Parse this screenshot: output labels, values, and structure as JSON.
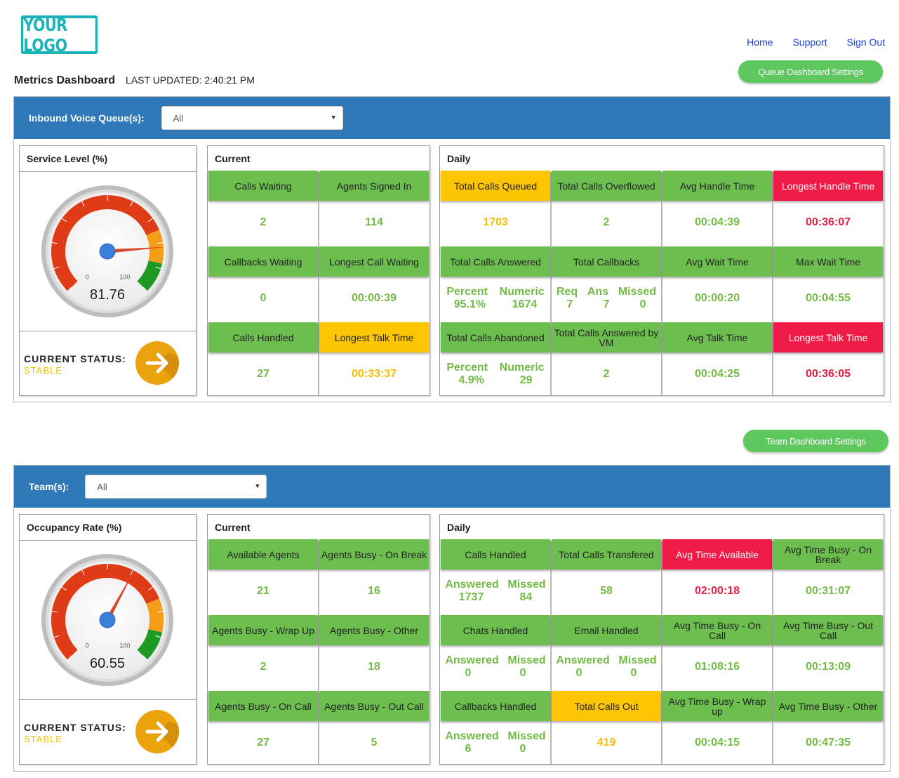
{
  "logo": "YOUR LOGO",
  "nav": {
    "home": "Home",
    "support": "Support",
    "signout": "Sign Out"
  },
  "page": {
    "title": "Metrics Dashboard",
    "updated": "LAST UPDATED: 2:40:21 PM"
  },
  "queue": {
    "settings_button": "Queue Dashboard Settings",
    "filter_label": "Inbound Voice Queue(s):",
    "filter_value": "All",
    "gauge": {
      "title": "Service Level (%)",
      "value": "81.76",
      "level": 81.76,
      "min_label": "0",
      "max_label": "100"
    },
    "status_label": "CURRENT STATUS:",
    "status_value": "STABLE",
    "current": {
      "title": "Current",
      "tiles": [
        {
          "label": "Calls Waiting",
          "value": "2"
        },
        {
          "label": "Agents Signed In",
          "value": "114"
        },
        {
          "label": "Callbacks Waiting",
          "value": "0"
        },
        {
          "label": "Longest Call Waiting",
          "value": "00:00:39"
        },
        {
          "label": "Calls Handled",
          "value": "27"
        },
        {
          "label": "Longest Talk Time",
          "value": "00:33:37"
        }
      ]
    },
    "daily": {
      "title": "Daily",
      "tiles": [
        {
          "label": "Total Calls Queued",
          "value": "1703"
        },
        {
          "label": "Total Calls Overflowed",
          "value": "2"
        },
        {
          "label": "Avg Handle Time",
          "value": "00:04:39"
        },
        {
          "label": "Longest Handle Time",
          "value": "00:36:07"
        },
        {
          "label": "Total Calls Answered",
          "k1": "Percent",
          "k2": "Numeric",
          "v1": "95.1%",
          "v2": "1674"
        },
        {
          "label": "Total Callbacks",
          "k1": "Req",
          "k2": "Ans",
          "k3": "Missed",
          "v1": "7",
          "v2": "7",
          "v3": "0"
        },
        {
          "label": "Avg Wait Time",
          "value": "00:00:20"
        },
        {
          "label": "Max Wait Time",
          "value": "00:04:55"
        },
        {
          "label": "Total Calls Abandoned",
          "k1": "Percent",
          "k2": "Numeric",
          "v1": "4.9%",
          "v2": "29"
        },
        {
          "label": "Total Calls Answered by VM",
          "value": "2"
        },
        {
          "label": "Avg Talk Time",
          "value": "00:04:25"
        },
        {
          "label": "Longest Talk Time",
          "value": "00:36:05"
        }
      ]
    }
  },
  "team": {
    "settings_button": "Team Dashboard Settings",
    "filter_label": "Team(s):",
    "filter_value": "All",
    "gauge": {
      "title": "Occupancy Rate (%)",
      "value": "60.55",
      "level": 60.55,
      "min_label": "0",
      "max_label": "100"
    },
    "status_label": "CURRENT STATUS:",
    "status_value": "STABLE",
    "current": {
      "title": "Current",
      "tiles": [
        {
          "label": "Available Agents",
          "value": "21"
        },
        {
          "label": "Agents Busy - On Break",
          "value": "16"
        },
        {
          "label": "Agents Busy - Wrap Up",
          "value": "2"
        },
        {
          "label": "Agents Busy - Other",
          "value": "18"
        },
        {
          "label": "Agents Busy - On Call",
          "value": "27"
        },
        {
          "label": "Agents Busy - Out Call",
          "value": "5"
        }
      ]
    },
    "daily": {
      "title": "Daily",
      "tiles": [
        {
          "label": "Calls Handled",
          "k1": "Answered",
          "k2": "Missed",
          "v1": "1737",
          "v2": "84"
        },
        {
          "label": "Total Calls Transfered",
          "value": "58"
        },
        {
          "label": "Avg Time Available",
          "value": "02:00:18"
        },
        {
          "label": "Avg Time Busy - On Break",
          "value": "00:31:07"
        },
        {
          "label": "Chats Handled",
          "k1": "Answered",
          "k2": "Missed",
          "v1": "0",
          "v2": "0"
        },
        {
          "label": "Email Handled",
          "k1": "Answered",
          "k2": "Missed",
          "v1": "0",
          "v2": "0"
        },
        {
          "label": "Avg Time Busy - On Call",
          "value": "01:08:16"
        },
        {
          "label": "Avg Time Busy - Out Call",
          "value": "00:13:09"
        },
        {
          "label": "Callbacks Handled",
          "k1": "Answered",
          "k2": "Missed",
          "v1": "6",
          "v2": "0"
        },
        {
          "label": "Total Calls Out",
          "value": "419"
        },
        {
          "label": "Avg Time Busy - Wrap up",
          "value": "00:04:15"
        },
        {
          "label": "Avg Time Busy - Other",
          "value": "00:47:35"
        }
      ]
    }
  },
  "colors": {
    "blue_bar": "#2f79b9",
    "green": "#6cbf4e",
    "yellow": "#fec503",
    "red": "#ef1a45",
    "logo": "#1ab3b8"
  }
}
